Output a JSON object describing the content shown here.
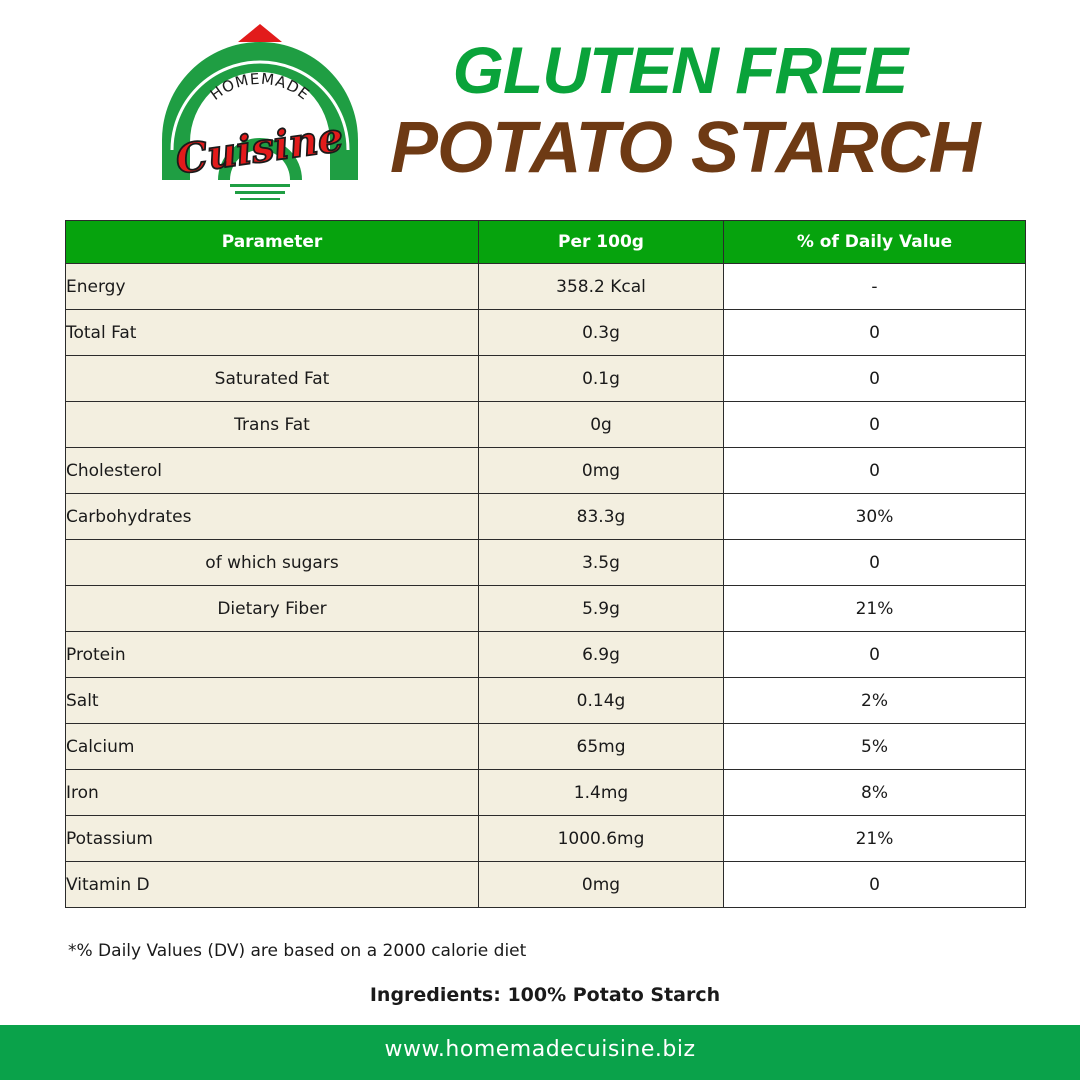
{
  "logo": {
    "top_text": "HOMEMADE",
    "script_text": "Cuisine",
    "colors": {
      "green": "#1f9e43",
      "red": "#e21b1b"
    }
  },
  "title": {
    "line1": "GLUTEN FREE",
    "line2": "POTATO STARCH",
    "line1_color": "#0aa33a",
    "line2_color": "#6e3a14"
  },
  "table": {
    "headers": [
      "Parameter",
      "Per 100g",
      "% of Daily Value"
    ],
    "header_color": "#06a30d",
    "rows": [
      {
        "parameter": "Energy",
        "per100g": "358.2 Kcal",
        "dv": "-"
      },
      {
        "parameter": "Total Fat",
        "per100g": "0.3g",
        "dv": "0"
      },
      {
        "parameter": "Saturated Fat",
        "per100g": "0.1g",
        "dv": "0"
      },
      {
        "parameter": "Trans Fat",
        "per100g": "0g",
        "dv": "0"
      },
      {
        "parameter": "Cholesterol",
        "per100g": "0mg",
        "dv": "0"
      },
      {
        "parameter": "Carbohydrates",
        "per100g": "83.3g",
        "dv": "30%"
      },
      {
        "parameter": "of which sugars",
        "per100g": "3.5g",
        "dv": "0"
      },
      {
        "parameter": "Dietary Fiber",
        "per100g": "5.9g",
        "dv": "21%"
      },
      {
        "parameter": "Protein",
        "per100g": "6.9g",
        "dv": "0"
      },
      {
        "parameter": "Salt",
        "per100g": "0.14g",
        "dv": "2%"
      },
      {
        "parameter": "Calcium",
        "per100g": "65mg",
        "dv": "5%"
      },
      {
        "parameter": "Iron",
        "per100g": "1.4mg",
        "dv": "8%"
      },
      {
        "parameter": "Potassium",
        "per100g": "1000.6mg",
        "dv": "21%"
      },
      {
        "parameter": "Vitamin D",
        "per100g": "0mg",
        "dv": "0"
      }
    ]
  },
  "footnote": "*% Daily Values (DV) are based on a 2000 calorie diet",
  "ingredients": "Ingredients: 100% Potato Starch",
  "footer": {
    "url": "www.homemadecuisine.biz",
    "color": "#0aa24a"
  }
}
